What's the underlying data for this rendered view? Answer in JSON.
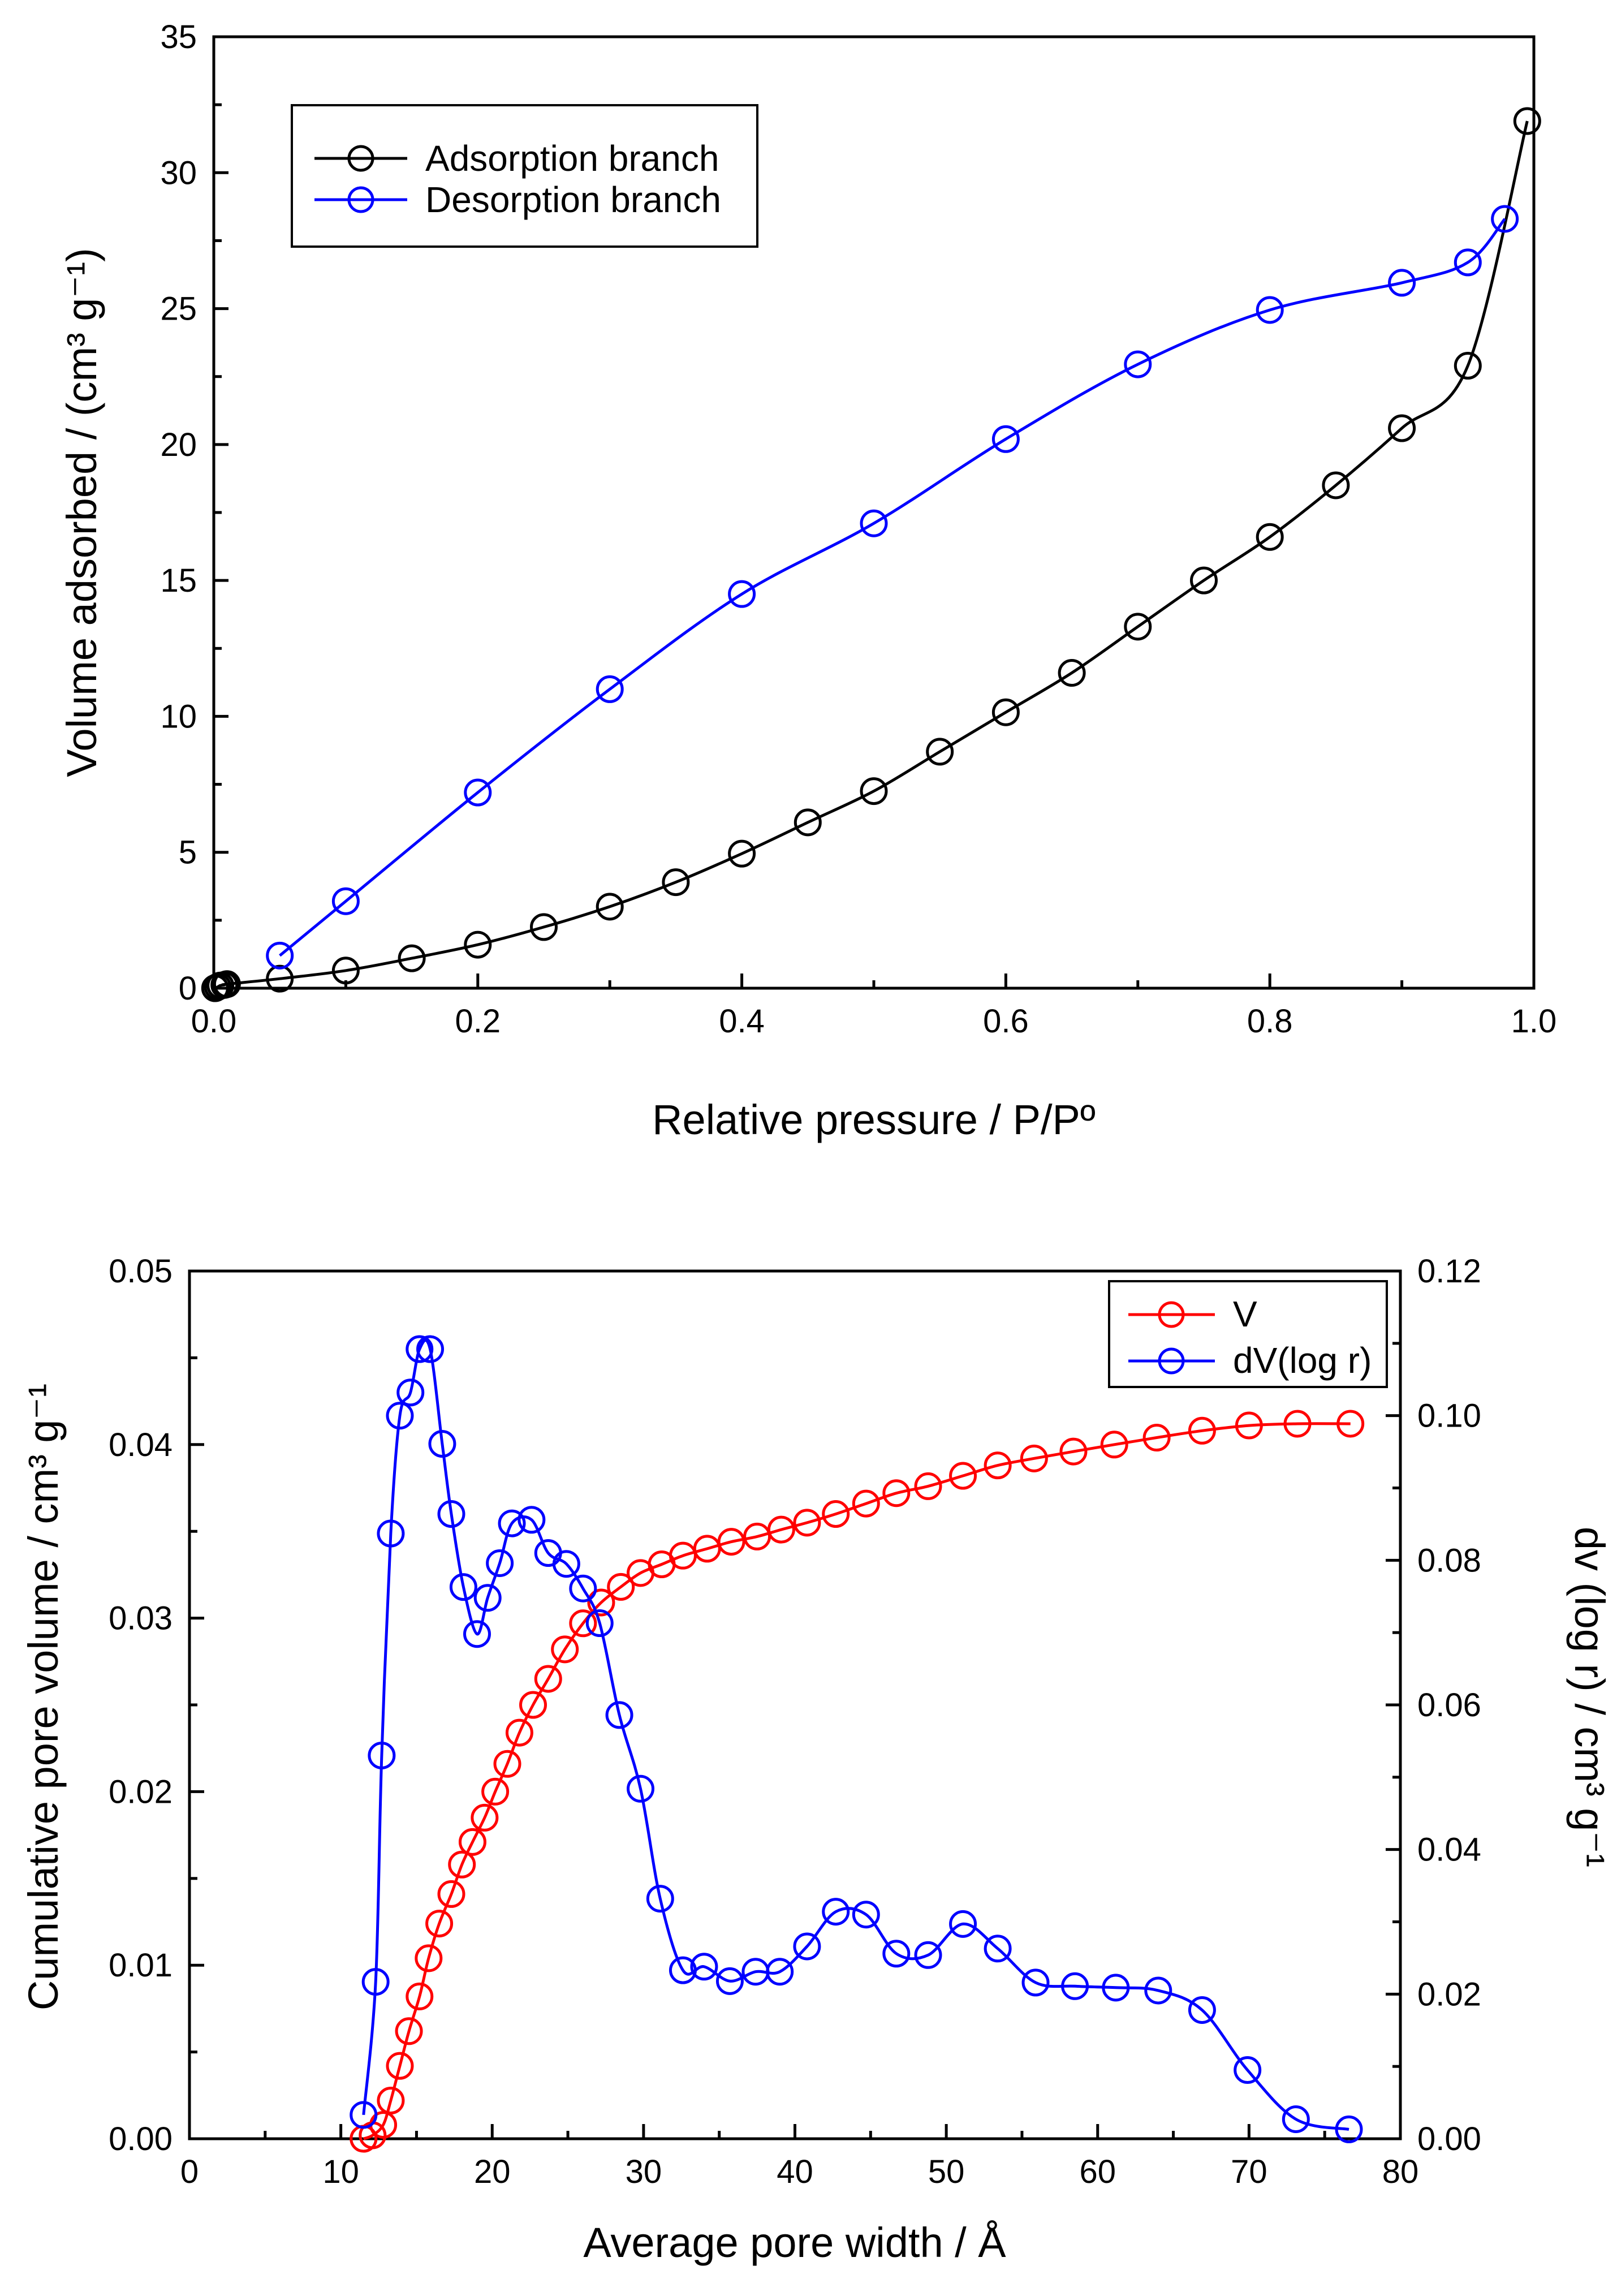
{
  "colors": {
    "adsorption": "#000000",
    "desorption": "#0000ff",
    "cumulative": "#ff0000",
    "differential": "#0000ff"
  },
  "chart_data": [
    {
      "type": "line",
      "xlabel": "Relative pressure / P/Pº",
      "ylabel": "Volume adsorbed / (cm³ g⁻¹)",
      "xlim": [
        0,
        1.0
      ],
      "ylim": [
        0,
        35
      ],
      "x_ticks": [
        "0.0",
        "0.2",
        "0.4",
        "0.6",
        "0.8",
        "1.0"
      ],
      "y_ticks": [
        "0",
        "5",
        "10",
        "15",
        "20",
        "25",
        "30",
        "35"
      ],
      "grid": false,
      "legend_position": "top-left",
      "series": [
        {
          "name": "Adsorption branch",
          "color": "#000000",
          "x": [
            0.001,
            0.003,
            0.005,
            0.008,
            0.01,
            0.05,
            0.1,
            0.15,
            0.2,
            0.25,
            0.3,
            0.35,
            0.4,
            0.45,
            0.5,
            0.55,
            0.6,
            0.65,
            0.7,
            0.75,
            0.8,
            0.85,
            0.9,
            0.95,
            0.995
          ],
          "y": [
            0.0,
            0.05,
            0.1,
            0.12,
            0.15,
            0.35,
            0.65,
            1.1,
            1.6,
            2.25,
            3.0,
            3.9,
            4.95,
            6.1,
            7.25,
            8.7,
            10.15,
            11.6,
            13.3,
            15.0,
            16.6,
            18.5,
            20.6,
            22.9,
            31.9
          ]
        },
        {
          "name": "Desorption branch",
          "color": "#0000ff",
          "x": [
            0.05,
            0.1,
            0.2,
            0.3,
            0.4,
            0.5,
            0.6,
            0.7,
            0.8,
            0.9,
            0.95,
            0.978
          ],
          "y": [
            1.2,
            3.2,
            7.2,
            11.0,
            14.5,
            17.1,
            20.2,
            22.95,
            24.95,
            25.95,
            26.7,
            28.3
          ]
        }
      ]
    },
    {
      "type": "line",
      "xlabel": "Average pore width / Å",
      "ylabel": "Cumulative pore volume / cm³ g⁻¹",
      "y2label": "dv (log r) / cm³ g⁻¹",
      "xlim": [
        0,
        80
      ],
      "ylim": [
        0,
        0.05
      ],
      "y2lim": [
        0,
        0.12
      ],
      "x_ticks": [
        "0",
        "10",
        "20",
        "30",
        "40",
        "50",
        "60",
        "70",
        "80"
      ],
      "y_ticks": [
        "0.00",
        "0.01",
        "0.02",
        "0.03",
        "0.04",
        "0.05"
      ],
      "y2_ticks": [
        "0.00",
        "0.02",
        "0.04",
        "0.06",
        "0.08",
        "0.10",
        "0.12"
      ],
      "grid": false,
      "legend_position": "top-right",
      "series": [
        {
          "name": "V",
          "axis": "left",
          "color": "#ff0000",
          "x": [
            11.5,
            12.1,
            12.8,
            13.3,
            13.9,
            14.5,
            15.2,
            15.8,
            16.5,
            17.3,
            18.0,
            18.7,
            19.5,
            20.2,
            21.0,
            21.8,
            22.7,
            23.7,
            24.8,
            26.0,
            27.2,
            28.5,
            29.8,
            31.2,
            32.6,
            34.2,
            35.8,
            37.5,
            39.1,
            40.8,
            42.7,
            44.7,
            46.7,
            48.8,
            51.1,
            53.4,
            55.8,
            58.4,
            61.1,
            63.9,
            66.9,
            70.0,
            73.2,
            76.7
          ],
          "y": [
            0.0,
            0.0002,
            0.0008,
            0.0022,
            0.0042,
            0.0062,
            0.0082,
            0.0104,
            0.0124,
            0.0141,
            0.0158,
            0.0171,
            0.0185,
            0.02,
            0.0216,
            0.0234,
            0.025,
            0.0265,
            0.0282,
            0.0297,
            0.0309,
            0.0318,
            0.0326,
            0.0331,
            0.0336,
            0.034,
            0.0344,
            0.0347,
            0.0351,
            0.0355,
            0.036,
            0.0366,
            0.0372,
            0.0376,
            0.0382,
            0.0388,
            0.0392,
            0.0396,
            0.04,
            0.0404,
            0.0408,
            0.0411,
            0.0412,
            0.0412
          ]
        },
        {
          "name": "dV(log r)",
          "axis": "right",
          "color": "#0000ff",
          "x": [
            11.5,
            12.3,
            12.7,
            13.3,
            13.9,
            14.6,
            15.2,
            15.9,
            16.7,
            17.3,
            18.1,
            19.0,
            19.7,
            20.5,
            21.3,
            22.6,
            23.7,
            24.9,
            26.0,
            27.1,
            28.4,
            29.8,
            31.1,
            32.6,
            34.0,
            35.7,
            37.4,
            39.0,
            40.8,
            42.7,
            44.7,
            46.7,
            48.8,
            51.1,
            53.4,
            55.9,
            58.5,
            61.2,
            64.0,
            66.9,
            69.9,
            73.1,
            76.6
          ],
          "y": [
            0.0033,
            0.0217,
            0.053,
            0.0837,
            0.1,
            0.1032,
            0.1092,
            0.1092,
            0.0961,
            0.0864,
            0.0763,
            0.0698,
            0.0748,
            0.0796,
            0.0851,
            0.0856,
            0.081,
            0.0795,
            0.0761,
            0.0713,
            0.0586,
            0.0484,
            0.0332,
            0.0233,
            0.0238,
            0.0218,
            0.0231,
            0.0231,
            0.0266,
            0.0314,
            0.031,
            0.0256,
            0.0254,
            0.0297,
            0.0263,
            0.0216,
            0.0211,
            0.0209,
            0.0205,
            0.0178,
            0.0095,
            0.0027,
            0.0013
          ]
        }
      ]
    }
  ]
}
